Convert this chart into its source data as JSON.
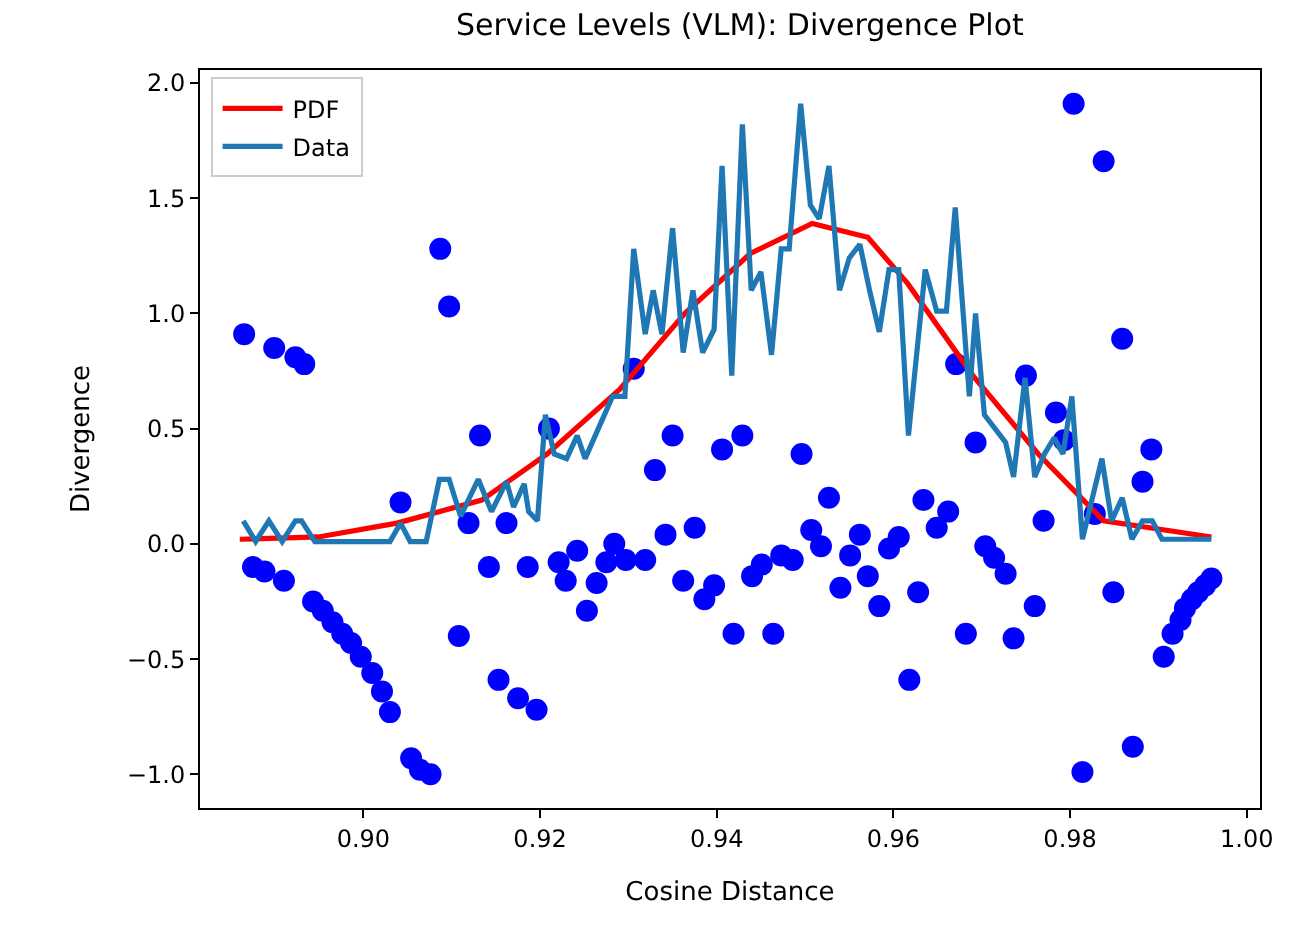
{
  "chart_data": {
    "type": "scatter",
    "title": "Service Levels (VLM): Divergence Plot",
    "xlabel": "Cosine Distance",
    "ylabel": "Divergence",
    "xlim": [
      0.8815,
      1.0015
    ],
    "ylim": [
      -1.146,
      2.056
    ],
    "xticks": [
      {
        "value": 0.9,
        "label": "0.90"
      },
      {
        "value": 0.92,
        "label": "0.92"
      },
      {
        "value": 0.94,
        "label": "0.94"
      },
      {
        "value": 0.96,
        "label": "0.96"
      },
      {
        "value": 0.98,
        "label": "0.98"
      },
      {
        "value": 1.0,
        "label": "1.00"
      }
    ],
    "yticks": [
      {
        "value": -1.0,
        "label": "−1.0"
      },
      {
        "value": -0.5,
        "label": "−0.5"
      },
      {
        "value": 0.0,
        "label": "0.0"
      },
      {
        "value": 0.5,
        "label": "0.5"
      },
      {
        "value": 1.0,
        "label": "1.0"
      },
      {
        "value": 1.5,
        "label": "1.5"
      },
      {
        "value": 2.0,
        "label": "2.0"
      }
    ],
    "legend": "top left",
    "series": [
      {
        "marker": "circle",
        "color": "#0000ff",
        "x": [
          0.8865,
          0.8899,
          0.8923,
          0.8933,
          0.9087,
          0.9097,
          0.9132,
          0.9042,
          0.9119,
          0.9162,
          0.921,
          0.8875,
          0.8888,
          0.891,
          0.8943,
          0.8954,
          0.8965,
          0.8976,
          0.8986,
          0.8997,
          0.901,
          0.9021,
          0.903,
          0.9054,
          0.9064,
          0.9076,
          0.9142,
          0.9186,
          0.9221,
          0.9229,
          0.9108,
          0.9153,
          0.9175,
          0.9196,
          0.9306,
          0.935,
          0.933,
          0.9406,
          0.9429,
          0.9496,
          0.9527,
          0.9634,
          0.9242,
          0.9253,
          0.9264,
          0.9275,
          0.9284,
          0.9297,
          0.9319,
          0.9342,
          0.9362,
          0.9375,
          0.9386,
          0.9397,
          0.9419,
          0.944,
          0.9451,
          0.9464,
          0.9473,
          0.9486,
          0.9507,
          0.9518,
          0.954,
          0.9551,
          0.9562,
          0.9571,
          0.9584,
          0.9595,
          0.9606,
          0.9618,
          0.9628,
          0.9804,
          0.9838,
          0.9859,
          0.9671,
          0.975,
          0.9784,
          0.9793,
          0.9693,
          0.9892,
          0.9882,
          0.9828,
          0.977,
          0.9662,
          0.9649,
          0.9704,
          0.9714,
          0.9727,
          0.976,
          0.9682,
          0.9736,
          0.9849,
          0.9814,
          0.9871,
          0.996,
          0.9953,
          0.9945,
          0.9938,
          0.993,
          0.9925,
          0.9916,
          0.9906
        ],
        "values": [
          0.91,
          0.85,
          0.81,
          0.78,
          1.28,
          1.03,
          0.47,
          0.18,
          0.09,
          0.09,
          0.5,
          -0.1,
          -0.12,
          -0.16,
          -0.25,
          -0.29,
          -0.34,
          -0.39,
          -0.43,
          -0.49,
          -0.56,
          -0.64,
          -0.73,
          -0.93,
          -0.98,
          -1.0,
          -0.1,
          -0.1,
          -0.08,
          -0.16,
          -0.4,
          -0.59,
          -0.67,
          -0.72,
          0.76,
          0.47,
          0.32,
          0.41,
          0.47,
          0.39,
          0.2,
          0.19,
          -0.03,
          -0.29,
          -0.17,
          -0.08,
          0.0,
          -0.07,
          -0.07,
          0.04,
          -0.16,
          0.07,
          -0.24,
          -0.18,
          -0.39,
          -0.14,
          -0.09,
          -0.39,
          -0.05,
          -0.07,
          0.06,
          -0.01,
          -0.19,
          -0.05,
          0.04,
          -0.14,
          -0.27,
          -0.02,
          0.03,
          -0.59,
          -0.21,
          1.91,
          1.66,
          0.89,
          0.78,
          0.73,
          0.57,
          0.45,
          0.44,
          0.41,
          0.27,
          0.13,
          0.1,
          0.14,
          0.07,
          -0.01,
          -0.06,
          -0.13,
          -0.27,
          -0.39,
          -0.41,
          -0.21,
          -0.99,
          -0.88,
          -0.15,
          -0.18,
          -0.21,
          -0.24,
          -0.28,
          -0.33,
          -0.39,
          -0.49
        ]
      },
      {
        "type": "line",
        "name": "PDF",
        "color": "#ff0000",
        "x": [
          0.886,
          0.8949,
          0.9038,
          0.9134,
          0.9208,
          0.929,
          0.9364,
          0.9438,
          0.9508,
          0.9571,
          0.9616,
          0.969,
          0.9764,
          0.9838,
          0.996
        ],
        "values": [
          0.02,
          0.03,
          0.09,
          0.19,
          0.39,
          0.67,
          1.0,
          1.26,
          1.39,
          1.33,
          1.13,
          0.73,
          0.39,
          0.1,
          0.03
        ]
      },
      {
        "type": "line",
        "name": "Data",
        "color": "#1f77b4",
        "x": [
          0.8864,
          0.8878,
          0.8893,
          0.8908,
          0.8923,
          0.893,
          0.8945,
          0.903,
          0.9042,
          0.9053,
          0.9071,
          0.9086,
          0.9097,
          0.911,
          0.913,
          0.9145,
          0.9162,
          0.917,
          0.9182,
          0.9187,
          0.9197,
          0.9206,
          0.9216,
          0.923,
          0.9242,
          0.9251,
          0.9282,
          0.9296,
          0.9306,
          0.9319,
          0.9328,
          0.9338,
          0.935,
          0.9362,
          0.9373,
          0.9384,
          0.9397,
          0.9406,
          0.9417,
          0.9429,
          0.9439,
          0.945,
          0.9462,
          0.9473,
          0.9482,
          0.9495,
          0.9506,
          0.9516,
          0.9527,
          0.9539,
          0.955,
          0.9562,
          0.9573,
          0.9584,
          0.9595,
          0.9606,
          0.9617,
          0.9636,
          0.9649,
          0.966,
          0.967,
          0.9686,
          0.9693,
          0.9703,
          0.9727,
          0.9736,
          0.9749,
          0.976,
          0.9771,
          0.9782,
          0.9792,
          0.9802,
          0.9814,
          0.9836,
          0.9847,
          0.9859,
          0.987,
          0.9882,
          0.9893,
          0.9904,
          0.996
        ],
        "values": [
          0.1,
          0.01,
          0.1,
          0.01,
          0.1,
          0.1,
          0.01,
          0.01,
          0.09,
          0.01,
          0.01,
          0.28,
          0.28,
          0.12,
          0.28,
          0.14,
          0.27,
          0.16,
          0.26,
          0.14,
          0.1,
          0.56,
          0.39,
          0.37,
          0.47,
          0.37,
          0.64,
          0.64,
          1.28,
          0.91,
          1.1,
          0.91,
          1.37,
          0.83,
          1.1,
          0.83,
          0.93,
          1.64,
          0.73,
          1.82,
          1.1,
          1.18,
          0.82,
          1.28,
          1.28,
          1.91,
          1.47,
          1.41,
          1.64,
          1.1,
          1.24,
          1.3,
          1.1,
          0.92,
          1.19,
          1.19,
          0.47,
          1.19,
          1.01,
          1.01,
          1.46,
          0.64,
          1.0,
          0.56,
          0.44,
          0.29,
          0.72,
          0.29,
          0.39,
          0.46,
          0.39,
          0.64,
          0.02,
          0.37,
          0.1,
          0.2,
          0.02,
          0.1,
          0.1,
          0.02,
          0.02
        ]
      }
    ]
  }
}
